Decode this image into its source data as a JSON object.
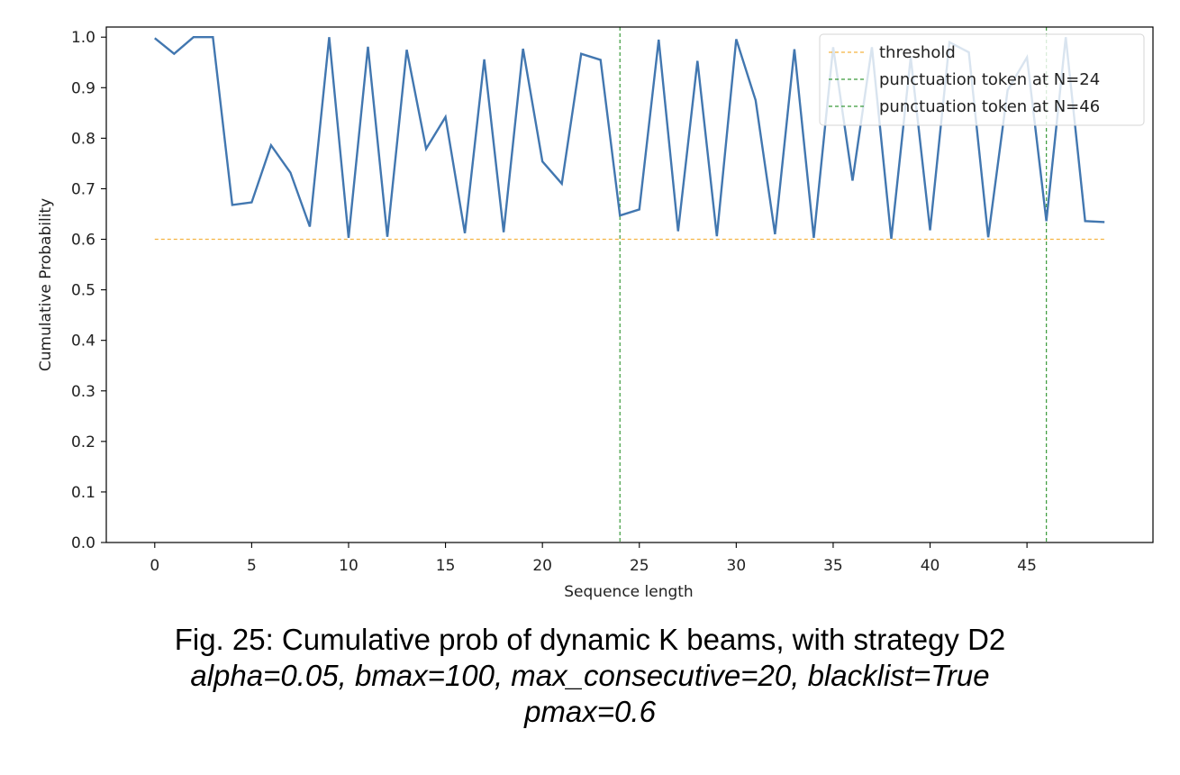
{
  "chart_data": {
    "type": "line",
    "title": "",
    "xlabel": "Sequence length",
    "ylabel": "Cumulative Probability",
    "xlim": [
      -2.5,
      51.5
    ],
    "ylim": [
      0.0,
      1.02
    ],
    "xticks": [
      0,
      5,
      10,
      15,
      20,
      25,
      30,
      35,
      40,
      45
    ],
    "yticks": [
      0.0,
      0.1,
      0.2,
      0.3,
      0.4,
      0.5,
      0.6,
      0.7,
      0.8,
      0.9,
      1.0
    ],
    "xtick_labels": [
      "0",
      "5",
      "10",
      "15",
      "20",
      "25",
      "30",
      "35",
      "40",
      "45"
    ],
    "ytick_labels": [
      "0.0",
      "0.1",
      "0.2",
      "0.3",
      "0.4",
      "0.5",
      "0.6",
      "0.7",
      "0.8",
      "0.9",
      "1.0"
    ],
    "grid": false,
    "legend_position": "top-right",
    "series": [
      {
        "color": "#4277b0",
        "x": [
          0,
          1,
          2,
          3,
          4,
          5,
          6,
          7,
          8,
          9,
          10,
          11,
          12,
          13,
          14,
          15,
          16,
          17,
          18,
          19,
          20,
          21,
          22,
          23,
          24,
          25,
          26,
          27,
          28,
          29,
          30,
          31,
          32,
          33,
          34,
          35,
          36,
          37,
          38,
          39,
          40,
          41,
          42,
          43,
          44,
          45,
          46,
          47,
          48,
          49
        ],
        "y": [
          0.998,
          0.967,
          1.0,
          1.0,
          0.668,
          0.673,
          0.786,
          0.732,
          0.625,
          1.0,
          0.603,
          0.981,
          0.605,
          0.975,
          0.779,
          0.842,
          0.612,
          0.956,
          0.614,
          0.977,
          0.754,
          0.71,
          0.967,
          0.955,
          0.647,
          0.659,
          0.995,
          0.616,
          0.953,
          0.606,
          0.996,
          0.875,
          0.61,
          0.976,
          0.603,
          0.98,
          0.716,
          0.98,
          0.601,
          0.96,
          0.618,
          0.99,
          0.97,
          0.604,
          0.895,
          0.96,
          0.636,
          1.0,
          0.636,
          0.634
        ]
      }
    ],
    "hlines": [
      {
        "name": "threshold",
        "y": 0.6,
        "xmin": 0,
        "xmax": 49,
        "color": "#f5b342",
        "dashed": true
      }
    ],
    "vlines": [
      {
        "name": "punctuation token at N=24",
        "x": 24,
        "color": "#3a9a3a",
        "dashed": true
      },
      {
        "name": "punctuation token at N=46",
        "x": 46,
        "color": "#3a9a3a",
        "dashed": true
      }
    ]
  },
  "caption": {
    "line1": "Fig. 25: Cumulative prob of dynamic K beams, with strategy D2",
    "line2": "alpha=0.05, bmax=100, max_consecutive=20, blacklist=True",
    "line3": "pmax=0.6"
  }
}
